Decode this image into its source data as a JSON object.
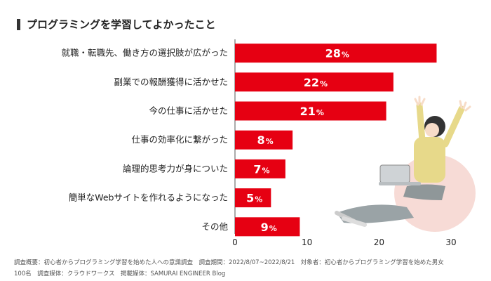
{
  "title": "プログラミングを学習してよかったこと",
  "chart_data": {
    "type": "bar",
    "orientation": "horizontal",
    "categories": [
      "就職・転職先、働き方の選択肢が広がった",
      "副業での報酬獲得に活かせた",
      "今の仕事に活かせた",
      "仕事の効率化に繋がった",
      "論理的思考力が身についた",
      "簡単なWebサイトを作れるようになった",
      "その他"
    ],
    "values": [
      28,
      22,
      21,
      8,
      7,
      5,
      9
    ],
    "value_suffix": "%",
    "xlim": [
      0,
      30
    ],
    "xticks": [
      "0",
      "10",
      "20",
      "30"
    ],
    "bar_color": "#e60012",
    "label_color": "#ffffff",
    "grid": false
  },
  "footnote": {
    "line1": "調査概要：初心者からプログラミング学習を始めた人への意識調査　調査期間：2022/8/07~2022/8/21　対象者：初心者からプログラミング学習を始めた男女",
    "line2": "100名　調査媒体：クラウドワークス　掲載媒体：SAMURAI ENGINEER Blog"
  }
}
